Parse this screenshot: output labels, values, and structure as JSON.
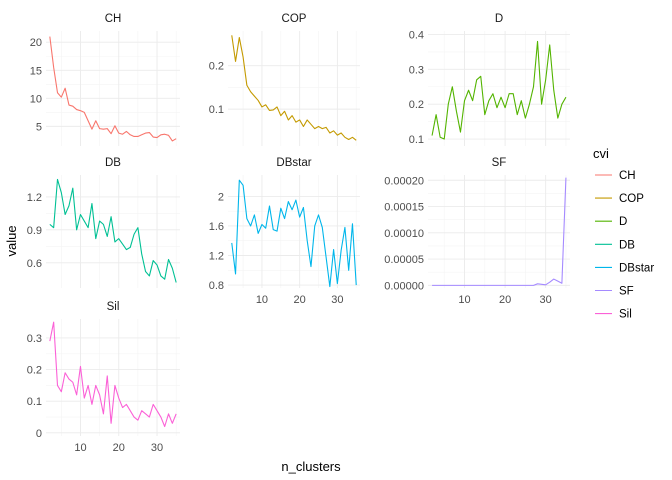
{
  "chart_data": {
    "type": "line",
    "xlabel": "n_clusters",
    "ylabel": "value",
    "legend_title": "cvi",
    "legend_position": "right",
    "grid": true,
    "x": [
      2,
      3,
      4,
      5,
      6,
      7,
      8,
      9,
      10,
      11,
      12,
      13,
      14,
      15,
      16,
      17,
      18,
      19,
      20,
      21,
      22,
      23,
      24,
      25,
      26,
      27,
      28,
      29,
      30,
      31,
      32,
      33,
      34,
      35
    ],
    "x_ticks": [
      10,
      20,
      30
    ],
    "series": [
      {
        "name": "CH",
        "color": "#F8766D",
        "ylim": [
          1.5,
          22
        ],
        "y_ticks": [
          5,
          10,
          15,
          20
        ],
        "values": [
          21,
          15.5,
          11,
          10.2,
          11.8,
          8.8,
          8.6,
          8.0,
          7.8,
          7.5,
          6.0,
          4.5,
          6.0,
          4.6,
          4.5,
          4.6,
          3.7,
          5.1,
          3.8,
          3.6,
          4.1,
          3.5,
          3.2,
          3.2,
          3.5,
          3.8,
          3.9,
          3.1,
          3.0,
          3.5,
          3.6,
          3.4,
          2.4,
          2.8
        ]
      },
      {
        "name": "COP",
        "color": "#C49A00",
        "ylim": [
          0.015,
          0.28
        ],
        "y_ticks": [
          0.1,
          0.2
        ],
        "values": [
          0.27,
          0.21,
          0.265,
          0.22,
          0.155,
          0.14,
          0.13,
          0.12,
          0.105,
          0.11,
          0.097,
          0.098,
          0.105,
          0.085,
          0.095,
          0.075,
          0.085,
          0.07,
          0.075,
          0.06,
          0.075,
          0.065,
          0.055,
          0.06,
          0.055,
          0.058,
          0.045,
          0.05,
          0.04,
          0.045,
          0.035,
          0.03,
          0.035,
          0.028
        ]
      },
      {
        "name": "D",
        "color": "#53B400",
        "ylim": [
          0.08,
          0.41
        ],
        "y_ticks": [
          0.1,
          0.2,
          0.3,
          0.4
        ],
        "values": [
          0.11,
          0.17,
          0.105,
          0.1,
          0.2,
          0.25,
          0.18,
          0.12,
          0.21,
          0.24,
          0.21,
          0.27,
          0.28,
          0.17,
          0.21,
          0.23,
          0.19,
          0.22,
          0.19,
          0.23,
          0.23,
          0.17,
          0.21,
          0.16,
          0.2,
          0.25,
          0.38,
          0.2,
          0.27,
          0.37,
          0.24,
          0.16,
          0.2,
          0.22
        ]
      },
      {
        "name": "DB",
        "color": "#00C094",
        "ylim": [
          0.37,
          1.4
        ],
        "y_ticks": [
          0.6,
          0.9,
          1.2
        ],
        "values": [
          0.95,
          0.92,
          1.36,
          1.24,
          1.04,
          1.12,
          1.28,
          0.9,
          1.04,
          0.98,
          0.92,
          1.14,
          0.82,
          0.98,
          0.95,
          0.84,
          1.02,
          0.79,
          0.82,
          0.77,
          0.72,
          0.74,
          0.86,
          0.92,
          0.68,
          0.52,
          0.48,
          0.62,
          0.58,
          0.48,
          0.45,
          0.63,
          0.55,
          0.42
        ]
      },
      {
        "name": "DBstar",
        "color": "#00B6EB",
        "ylim": [
          0.76,
          2.29
        ],
        "y_ticks": [
          0.8,
          1.2,
          1.6,
          2.0
        ],
        "values": [
          1.37,
          0.95,
          2.22,
          2.15,
          1.7,
          1.6,
          1.75,
          1.5,
          1.62,
          1.57,
          1.87,
          1.55,
          1.53,
          1.84,
          1.7,
          1.93,
          1.82,
          1.95,
          1.72,
          1.85,
          1.4,
          1.05,
          1.6,
          1.75,
          1.58,
          1.18,
          0.78,
          1.28,
          0.82,
          1.27,
          1.58,
          1.0,
          1.63,
          0.8
        ]
      },
      {
        "name": "SF",
        "color": "#A58AFF",
        "ylim": [
          -5e-06,
          0.00021
        ],
        "y_ticks": [
          0.0,
          5e-05,
          0.0001,
          0.00015,
          0.0002
        ],
        "y_tick_labels": [
          "0.00000",
          "0.00005",
          "0.00010",
          "0.00015",
          "0.00020"
        ],
        "values": [
          0,
          0,
          0,
          0,
          0,
          0,
          0,
          0,
          0,
          0,
          0,
          0,
          0,
          0,
          0,
          0,
          0,
          0,
          0,
          0,
          0,
          0,
          0,
          0,
          0,
          0,
          3e-06,
          2e-06,
          1e-06,
          6e-06,
          1.2e-05,
          8e-06,
          4e-06,
          0.000205
        ]
      },
      {
        "name": "Sil",
        "color": "#FB61D7",
        "ylim": [
          -0.01,
          0.36
        ],
        "y_ticks": [
          0.0,
          0.1,
          0.2,
          0.3
        ],
        "values": [
          0.29,
          0.35,
          0.15,
          0.13,
          0.19,
          0.17,
          0.16,
          0.12,
          0.21,
          0.11,
          0.15,
          0.09,
          0.15,
          0.12,
          0.06,
          0.18,
          0.03,
          0.15,
          0.11,
          0.08,
          0.09,
          0.07,
          0.05,
          0.04,
          0.07,
          0.06,
          0.05,
          0.09,
          0.07,
          0.05,
          0.02,
          0.06,
          0.03,
          0.06
        ]
      }
    ]
  }
}
